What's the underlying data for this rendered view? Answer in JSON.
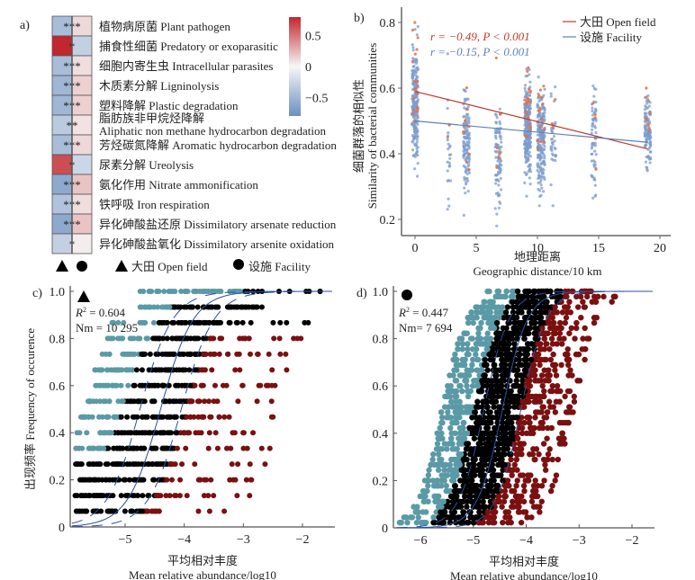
{
  "figure": {
    "panel_labels": [
      "a)",
      "b)",
      "c)",
      "d)"
    ]
  },
  "chart_data": [
    {
      "id": "a",
      "type": "heatmap",
      "columns": [
        {
          "symbol": "triangle",
          "name": "大田 Open field"
        },
        {
          "symbol": "circle",
          "name": "设施 Facility"
        }
      ],
      "rows": [
        {
          "label": "植物病原菌 Plant pathogen",
          "values": [
            -0.45,
            0.12
          ],
          "sig": "***"
        },
        {
          "label": "捕食性细菌 Predatory or exoparasitic",
          "values": [
            0.85,
            -0.3
          ],
          "sig": "*"
        },
        {
          "label": "细胞内寄生虫 Intracellular parasites",
          "values": [
            -0.45,
            0.1
          ],
          "sig": "***"
        },
        {
          "label": "木质素分解 Ligninolysis",
          "values": [
            -0.5,
            0.15
          ],
          "sig": "***"
        },
        {
          "label": "塑料降解 Plastic degradation",
          "values": [
            -0.5,
            0.15
          ],
          "sig": "***"
        },
        {
          "label": "脂肪族非甲烷烃降解 Aliphatic non methane hydrocarbon degradation",
          "label_lines": [
            "脂肪族非甲烷烃降解",
            "Aliphatic non methane hydrocarbon degradation"
          ],
          "values": [
            -0.35,
            0.08
          ],
          "sig": "**"
        },
        {
          "label": "芳烃碳氮降解 Aromatic hydrocarbon degradation",
          "values": [
            -0.45,
            0.12
          ],
          "sig": "***"
        },
        {
          "label": "尿素分解 Ureolysis",
          "values": [
            0.65,
            -0.25
          ],
          "sig": "*"
        },
        {
          "label": "氨化作用 Nitrate ammonification",
          "values": [
            -0.6,
            0.2
          ],
          "sig": "***"
        },
        {
          "label": "铁呼吸 Iron respiration",
          "values": [
            -0.4,
            0.1
          ],
          "sig": "***"
        },
        {
          "label": "异化砷酸盐还原 Dissimilatory arsenate reduction",
          "values": [
            -0.6,
            0.2
          ],
          "sig": "***"
        },
        {
          "label": "异化砷酸盐氧化 Dissimilatory arsenite oxidation",
          "values": [
            -0.3,
            0.04
          ],
          "sig": "*"
        }
      ],
      "colorbar": {
        "min": -0.8,
        "max": 0.8,
        "ticks": [
          0.5,
          0,
          -0.5
        ],
        "tick_labels": [
          "0.5",
          "0",
          "−0.5"
        ],
        "low_color": "#6b8fc0",
        "mid_color": "#f7f7f7",
        "high_color": "#c1272d"
      },
      "legend": [
        {
          "symbol": "triangle",
          "label": "大田 Open field"
        },
        {
          "symbol": "circle",
          "label": "设施 Facility"
        }
      ]
    },
    {
      "id": "b",
      "type": "scatter",
      "xlabel_cn": "地理距离",
      "xlabel": "Geographic distance/10 km",
      "ylabel_cn": "细菌群落的相似性",
      "ylabel": "Similarity of bacterial communities",
      "xlim": [
        -1.2,
        21
      ],
      "ylim": [
        0.13,
        0.83
      ],
      "xticks": [
        0,
        5,
        10,
        15,
        20
      ],
      "yticks": [
        0.2,
        0.4,
        0.6,
        0.8
      ],
      "ytick_labels": [
        "0.2",
        "0.4",
        "0.6",
        "0.8"
      ],
      "clusters_x": [
        0,
        2.8,
        4.2,
        6.8,
        9.2,
        10.3,
        11.3,
        14.6,
        19
      ],
      "series": [
        {
          "name": "大田 Open field",
          "color": "#c0392b",
          "point_color": "#e0704a",
          "fit": {
            "x": [
              0,
              19
            ],
            "y": [
              0.59,
              0.415
            ]
          },
          "annotation": "r = −0.49, P < 0.001"
        },
        {
          "name": "设施 Facility",
          "color": "#5b82b8",
          "point_color": "#7c9ccc",
          "fit": {
            "x": [
              0,
              19
            ],
            "y": [
              0.5,
              0.435
            ]
          },
          "annotation": "r = −0.15, P < 0.001"
        }
      ],
      "legend_position": "top-right"
    },
    {
      "id": "c",
      "type": "scatter",
      "marker": "triangle",
      "xlabel_cn": "平均相对丰度",
      "xlabel": "Mean relative abundance/log10",
      "ylabel_cn": "出现频率",
      "ylabel": "Frequency of occurence",
      "xlim": [
        -5.9,
        -1.5
      ],
      "ylim": [
        0,
        1.02
      ],
      "xticks": [
        -5,
        -4,
        -3,
        -2
      ],
      "xtick_labels": [
        "−5",
        "−4",
        "−3",
        "−2"
      ],
      "yticks": [
        0,
        0.2,
        0.4,
        0.6,
        0.8,
        1.0
      ],
      "ytick_labels": [
        "0",
        "0.2",
        "0.4",
        "0.6",
        "0.8",
        "1.0"
      ],
      "r2": "0.604",
      "nm": "10 295",
      "levels": 15,
      "colors": {
        "above": "#5a9aa6",
        "neutral": "#000000",
        "below": "#7a1010",
        "fit": "#2a4fa0"
      },
      "fit_midpoint": -4.4,
      "fit_slope": 3.6
    },
    {
      "id": "d",
      "type": "scatter",
      "marker": "circle",
      "xlabel_cn": "平均相对丰度",
      "xlabel": "Mean relative abundance/log10",
      "xlim": [
        -6.45,
        -1.6
      ],
      "ylim": [
        0,
        1.02
      ],
      "xticks": [
        -6,
        -5,
        -4,
        -3,
        -2
      ],
      "xtick_labels": [
        "−6",
        "−5",
        "−4",
        "−3",
        "−2"
      ],
      "yticks": [
        0,
        0.2,
        0.4,
        0.6,
        0.8,
        1.0
      ],
      "ytick_labels": [
        "0",
        "0.2",
        "0.4",
        "0.6",
        "0.8",
        "1.0"
      ],
      "r2": "0.447",
      "nm": "7 694",
      "levels": 45,
      "colors": {
        "above": "#5a9aa6",
        "neutral": "#000000",
        "below": "#7a1010",
        "fit": "#2a4fa0"
      },
      "fit_midpoint": -4.45,
      "fit_slope": 4.2
    }
  ]
}
